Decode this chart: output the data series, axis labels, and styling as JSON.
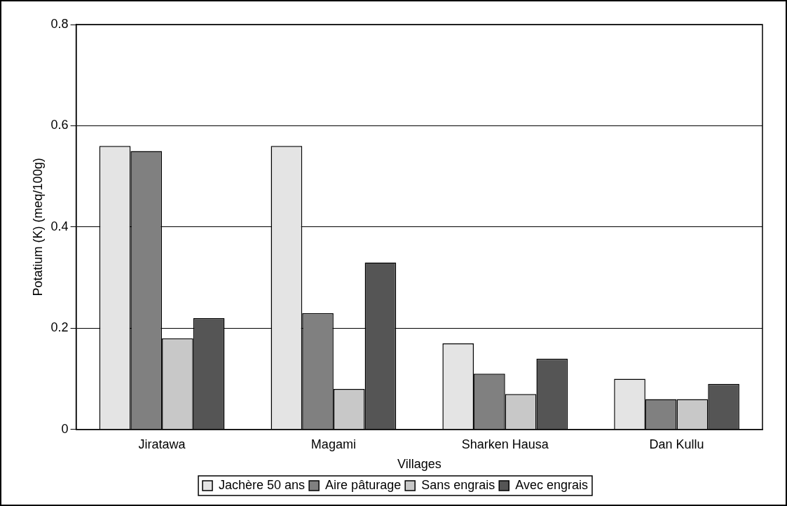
{
  "chart_data": {
    "type": "bar",
    "xlabel": "Villages",
    "ylabel": "Potatium (K) (meq/100g)",
    "categories": [
      "Jiratawa",
      "Magami",
      "Sharken Hausa",
      "Dan Kullu"
    ],
    "series": [
      {
        "name": "Jachère 50 ans",
        "color": "#e4e4e4",
        "values": [
          0.56,
          0.56,
          0.17,
          0.1
        ]
      },
      {
        "name": "Aire pâturage",
        "color": "#808080",
        "values": [
          0.55,
          0.23,
          0.11,
          0.06
        ]
      },
      {
        "name": "Sans engrais",
        "color": "#c8c8c8",
        "values": [
          0.18,
          0.08,
          0.07,
          0.06
        ]
      },
      {
        "name": "Avec engrais",
        "color": "#555555",
        "values": [
          0.22,
          0.33,
          0.14,
          0.09
        ]
      }
    ],
    "ylim": [
      0,
      0.8
    ],
    "yticks": [
      0,
      0.2,
      0.4,
      0.6,
      0.8
    ],
    "grid": "y",
    "legend": "bottom"
  }
}
